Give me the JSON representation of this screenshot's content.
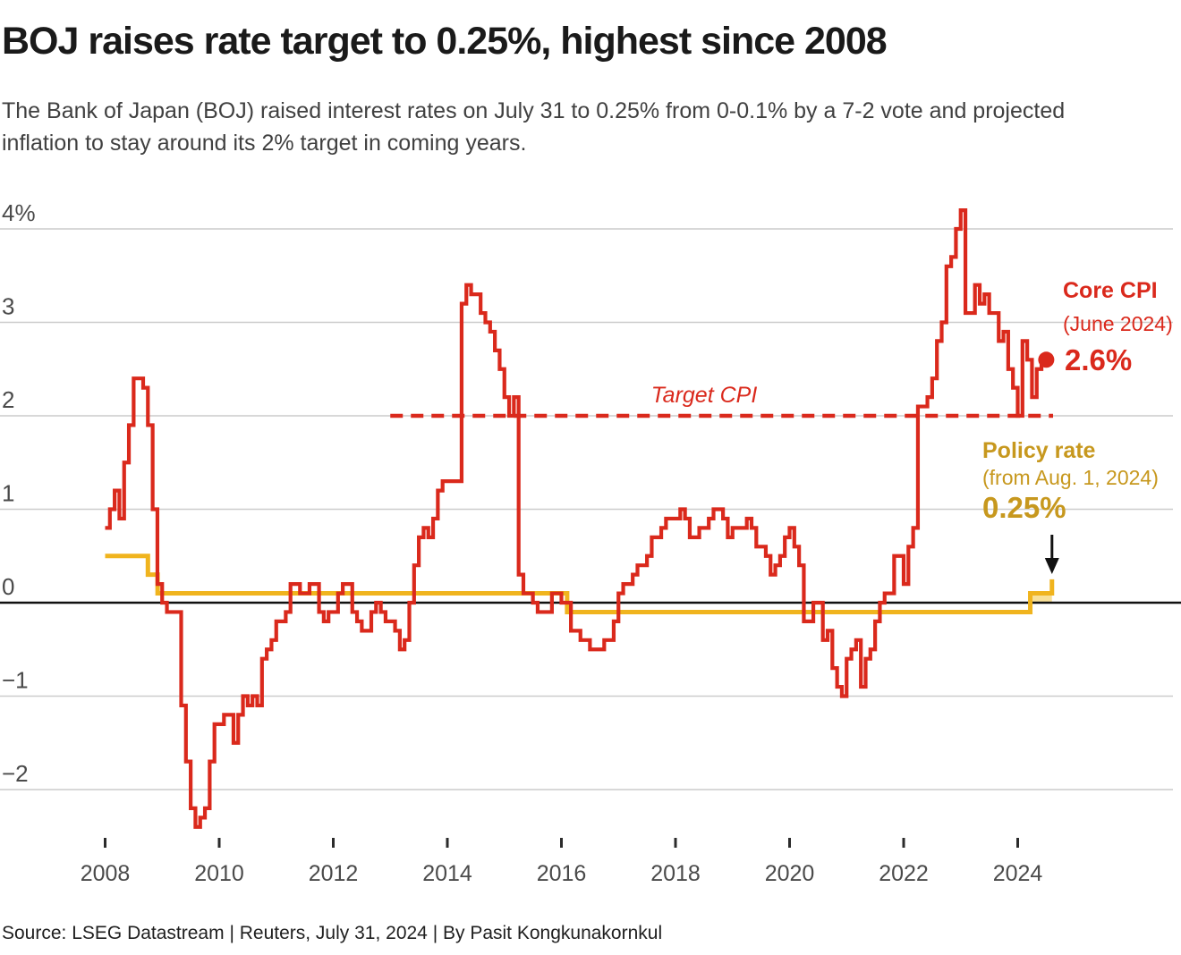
{
  "header": {
    "title": "BOJ raises rate target to 0.25%, highest since 2008",
    "subtitle": "The Bank of Japan (BOJ) raised interest rates on July 31 to 0.25% from 0-0.1% by a 7-2 vote and projected inflation to stay around its 2% target in coming years."
  },
  "footer": {
    "source": "Source: LSEG Datastream | Reuters, July 31, 2024 | By Pasit Kongkunakornkul"
  },
  "annotations": {
    "target_label": "Target CPI",
    "core_cpi_label": "Core CPI",
    "core_cpi_sub": "(June 2024)",
    "core_cpi_value": "2.6%",
    "policy_label": "Policy rate",
    "policy_sub": "(from Aug. 1, 2024)",
    "policy_value": "0.25%"
  },
  "colors": {
    "cpi_red": "#da291c",
    "policy_gold": "#f0b41e",
    "policy_gold_text": "#c7981e",
    "policy_band_fill": "#f8e098",
    "grid": "#cccccc",
    "zero_axis": "#111111",
    "tick": "#2b2b2b",
    "axis_text": "#4a4a4a"
  },
  "chart_data": {
    "type": "line",
    "title": "Japan core CPI (YoY %) vs BOJ policy rate, 2008-2024",
    "xlabel": "",
    "ylabel": "%",
    "xlim": [
      2008,
      2024.75
    ],
    "ylim": [
      -2.6,
      4.4
    ],
    "grid": true,
    "x_ticks": [
      2008,
      2010,
      2012,
      2014,
      2016,
      2018,
      2020,
      2022,
      2024
    ],
    "y_ticks": [
      {
        "value": 4,
        "label": "4%"
      },
      {
        "value": 3,
        "label": "3"
      },
      {
        "value": 2,
        "label": "2"
      },
      {
        "value": 1,
        "label": "1"
      },
      {
        "value": 0,
        "label": "0"
      },
      {
        "value": -1,
        "label": "−1"
      },
      {
        "value": -2,
        "label": "−2"
      }
    ],
    "target_line": {
      "value": 2,
      "from": 2013.0,
      "to": 2024.62,
      "label": "Target CPI"
    },
    "series": [
      {
        "name": "Core CPI",
        "unit": "% YoY",
        "frequency": "monthly",
        "start_year": 2008,
        "start_month": 1,
        "end_label": "2.6% (June 2024)",
        "values": [
          0.8,
          1.0,
          1.2,
          0.9,
          1.5,
          1.9,
          2.4,
          2.4,
          2.3,
          1.9,
          1.0,
          0.2,
          0.0,
          -0.1,
          -0.1,
          -0.1,
          -1.1,
          -1.7,
          -2.2,
          -2.4,
          -2.3,
          -2.2,
          -1.7,
          -1.3,
          -1.3,
          -1.2,
          -1.2,
          -1.5,
          -1.2,
          -1.0,
          -1.1,
          -1.0,
          -1.1,
          -0.6,
          -0.5,
          -0.4,
          -0.2,
          -0.2,
          -0.1,
          0.2,
          0.2,
          0.1,
          0.1,
          0.2,
          0.2,
          -0.1,
          -0.2,
          -0.1,
          -0.1,
          0.1,
          0.2,
          0.2,
          -0.1,
          -0.2,
          -0.3,
          -0.3,
          -0.1,
          0.0,
          -0.1,
          -0.2,
          -0.2,
          -0.3,
          -0.5,
          -0.4,
          0.0,
          0.4,
          0.7,
          0.8,
          0.7,
          0.9,
          1.2,
          1.3,
          1.3,
          1.3,
          1.3,
          3.2,
          3.4,
          3.3,
          3.3,
          3.1,
          3.0,
          2.9,
          2.7,
          2.5,
          2.2,
          2.0,
          2.2,
          0.3,
          0.1,
          0.1,
          0.0,
          -0.1,
          -0.1,
          -0.1,
          0.1,
          0.1,
          0.0,
          0.0,
          -0.3,
          -0.3,
          -0.4,
          -0.4,
          -0.5,
          -0.5,
          -0.5,
          -0.4,
          -0.4,
          -0.2,
          0.1,
          0.2,
          0.2,
          0.3,
          0.4,
          0.4,
          0.5,
          0.7,
          0.7,
          0.8,
          0.9,
          0.9,
          0.9,
          1.0,
          0.9,
          0.7,
          0.7,
          0.8,
          0.8,
          0.9,
          1.0,
          1.0,
          0.9,
          0.7,
          0.8,
          0.8,
          0.8,
          0.9,
          0.8,
          0.6,
          0.6,
          0.5,
          0.3,
          0.4,
          0.5,
          0.7,
          0.8,
          0.6,
          0.4,
          -0.2,
          -0.2,
          0.0,
          0.0,
          -0.4,
          -0.3,
          -0.7,
          -0.9,
          -1.0,
          -0.6,
          -0.5,
          -0.4,
          -0.9,
          -0.6,
          -0.5,
          -0.2,
          0.0,
          0.1,
          0.1,
          0.5,
          0.5,
          0.2,
          0.6,
          0.8,
          2.1,
          2.1,
          2.2,
          2.4,
          2.8,
          3.0,
          3.6,
          3.7,
          4.0,
          4.2,
          3.1,
          3.1,
          3.4,
          3.2,
          3.3,
          3.1,
          3.1,
          2.8,
          2.9,
          2.5,
          2.3,
          2.0,
          2.8,
          2.6,
          2.2,
          2.5,
          2.6
        ]
      },
      {
        "name": "Policy rate",
        "unit": "%",
        "step_segments": [
          {
            "from": 2008.0,
            "to": 2008.75,
            "value": 0.5
          },
          {
            "from": 2008.75,
            "to": 2008.92,
            "value": 0.3
          },
          {
            "from": 2008.92,
            "to": 2016.1,
            "value": 0.1
          },
          {
            "from": 2016.1,
            "to": 2024.22,
            "value": -0.1
          },
          {
            "from": 2024.22,
            "to": 2024.6,
            "value": 0.1,
            "band_low": 0.0,
            "band_high": 0.1
          }
        ],
        "end_jump": {
          "at": 2024.6,
          "value": 0.25
        }
      }
    ]
  }
}
